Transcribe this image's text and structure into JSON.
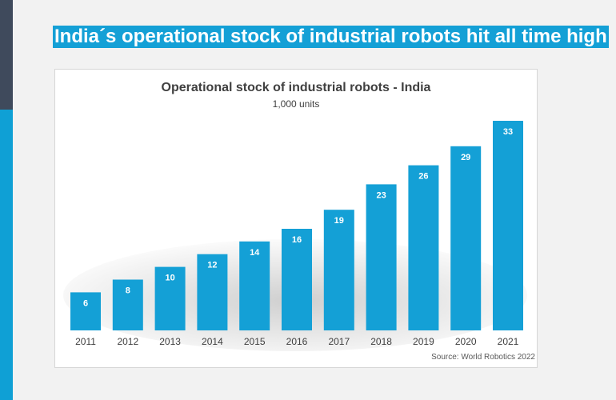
{
  "headline": "India´s operational stock of industrial robots hit all time high",
  "colors": {
    "bar": "#14a0d6",
    "headline_bg": "#14a0d6",
    "side_dark": "#3f4a5c",
    "side_blue": "#0fa0d5"
  },
  "chart_data": {
    "type": "bar",
    "title": "Operational stock of industrial robots - India",
    "subtitle": "1,000 units",
    "categories": [
      "2011",
      "2012",
      "2013",
      "2014",
      "2015",
      "2016",
      "2017",
      "2018",
      "2019",
      "2020",
      "2021"
    ],
    "values": [
      6,
      8,
      10,
      12,
      14,
      16,
      19,
      23,
      26,
      29,
      33
    ],
    "data_labels": [
      "6",
      "8",
      "10",
      "12",
      "14",
      "16",
      "19",
      "23",
      "26",
      "29",
      "33"
    ],
    "source": "Source: World Robotics 2022",
    "ylim": [
      0,
      34
    ],
    "grid": false,
    "legend": "none"
  }
}
